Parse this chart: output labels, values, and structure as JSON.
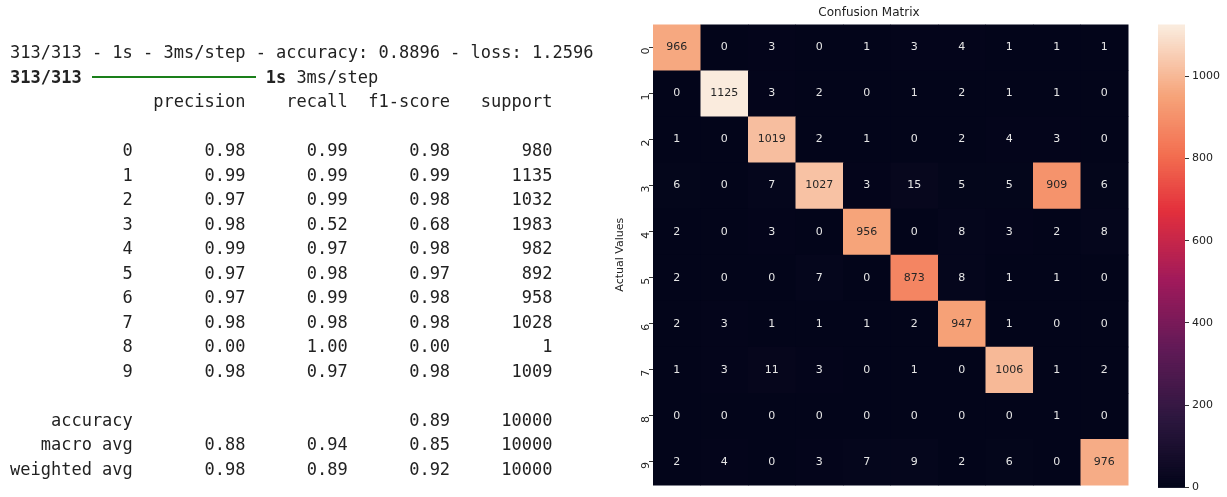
{
  "chart_data": [
    {
      "type": "other",
      "annotations": [
        "313/313 - 1s - 3ms/step - accuracy: 0.8896 - loss: 1.2596",
        "313/313",
        "1s 3ms/step",
        "              precision    recall  f1-score   support",
        "           0       0.98      0.99      0.98       980",
        "           1       0.99      0.99      0.99      1135",
        "           2       0.97      0.99      0.98      1032",
        "           3       0.98      0.52      0.68      1983",
        "           4       0.99      0.97      0.98       982",
        "           5       0.97      0.98      0.97       892",
        "           6       0.97      0.99      0.98       958",
        "           7       0.98      0.98      0.98      1028",
        "           8       0.00      1.00      0.00         1",
        "           9       0.98      0.97      0.98      1009",
        "    accuracy                           0.89     10000",
        "   macro avg       0.88      0.94      0.85     10000",
        "weighted avg       0.98      0.89      0.92     10000"
      ]
    },
    {
      "type": "heatmap",
      "title": "Confusion Matrix",
      "ylabel": "Actual Values",
      "data_labels": true,
      "categories": [
        null,
        null,
        null,
        null,
        null,
        null,
        null,
        null,
        null,
        null
      ],
      "y_categories": [
        "0",
        "1",
        "2",
        "3",
        "4",
        "5",
        "6",
        "7",
        "8",
        "9"
      ],
      "cells": [
        [
          966,
          0,
          3,
          0,
          1,
          3,
          4,
          1,
          1,
          1
        ],
        [
          0,
          1125,
          3,
          2,
          0,
          1,
          2,
          1,
          1,
          0
        ],
        [
          1,
          0,
          1019,
          2,
          1,
          0,
          2,
          4,
          3,
          0
        ],
        [
          6,
          0,
          7,
          1027,
          3,
          15,
          5,
          5,
          909,
          6
        ],
        [
          2,
          0,
          3,
          0,
          956,
          0,
          8,
          3,
          2,
          8
        ],
        [
          2,
          0,
          0,
          7,
          0,
          873,
          8,
          1,
          1,
          0
        ],
        [
          2,
          3,
          1,
          1,
          1,
          2,
          947,
          1,
          0,
          0
        ],
        [
          1,
          3,
          11,
          3,
          0,
          1,
          0,
          1006,
          1,
          2
        ],
        [
          0,
          0,
          0,
          0,
          0,
          0,
          0,
          0,
          1,
          0
        ],
        [
          2,
          4,
          0,
          3,
          7,
          9,
          2,
          6,
          0,
          976
        ]
      ],
      "clim": [
        0,
        1125
      ],
      "cticks": [
        0,
        200,
        400,
        600,
        800,
        1000
      ]
    }
  ]
}
